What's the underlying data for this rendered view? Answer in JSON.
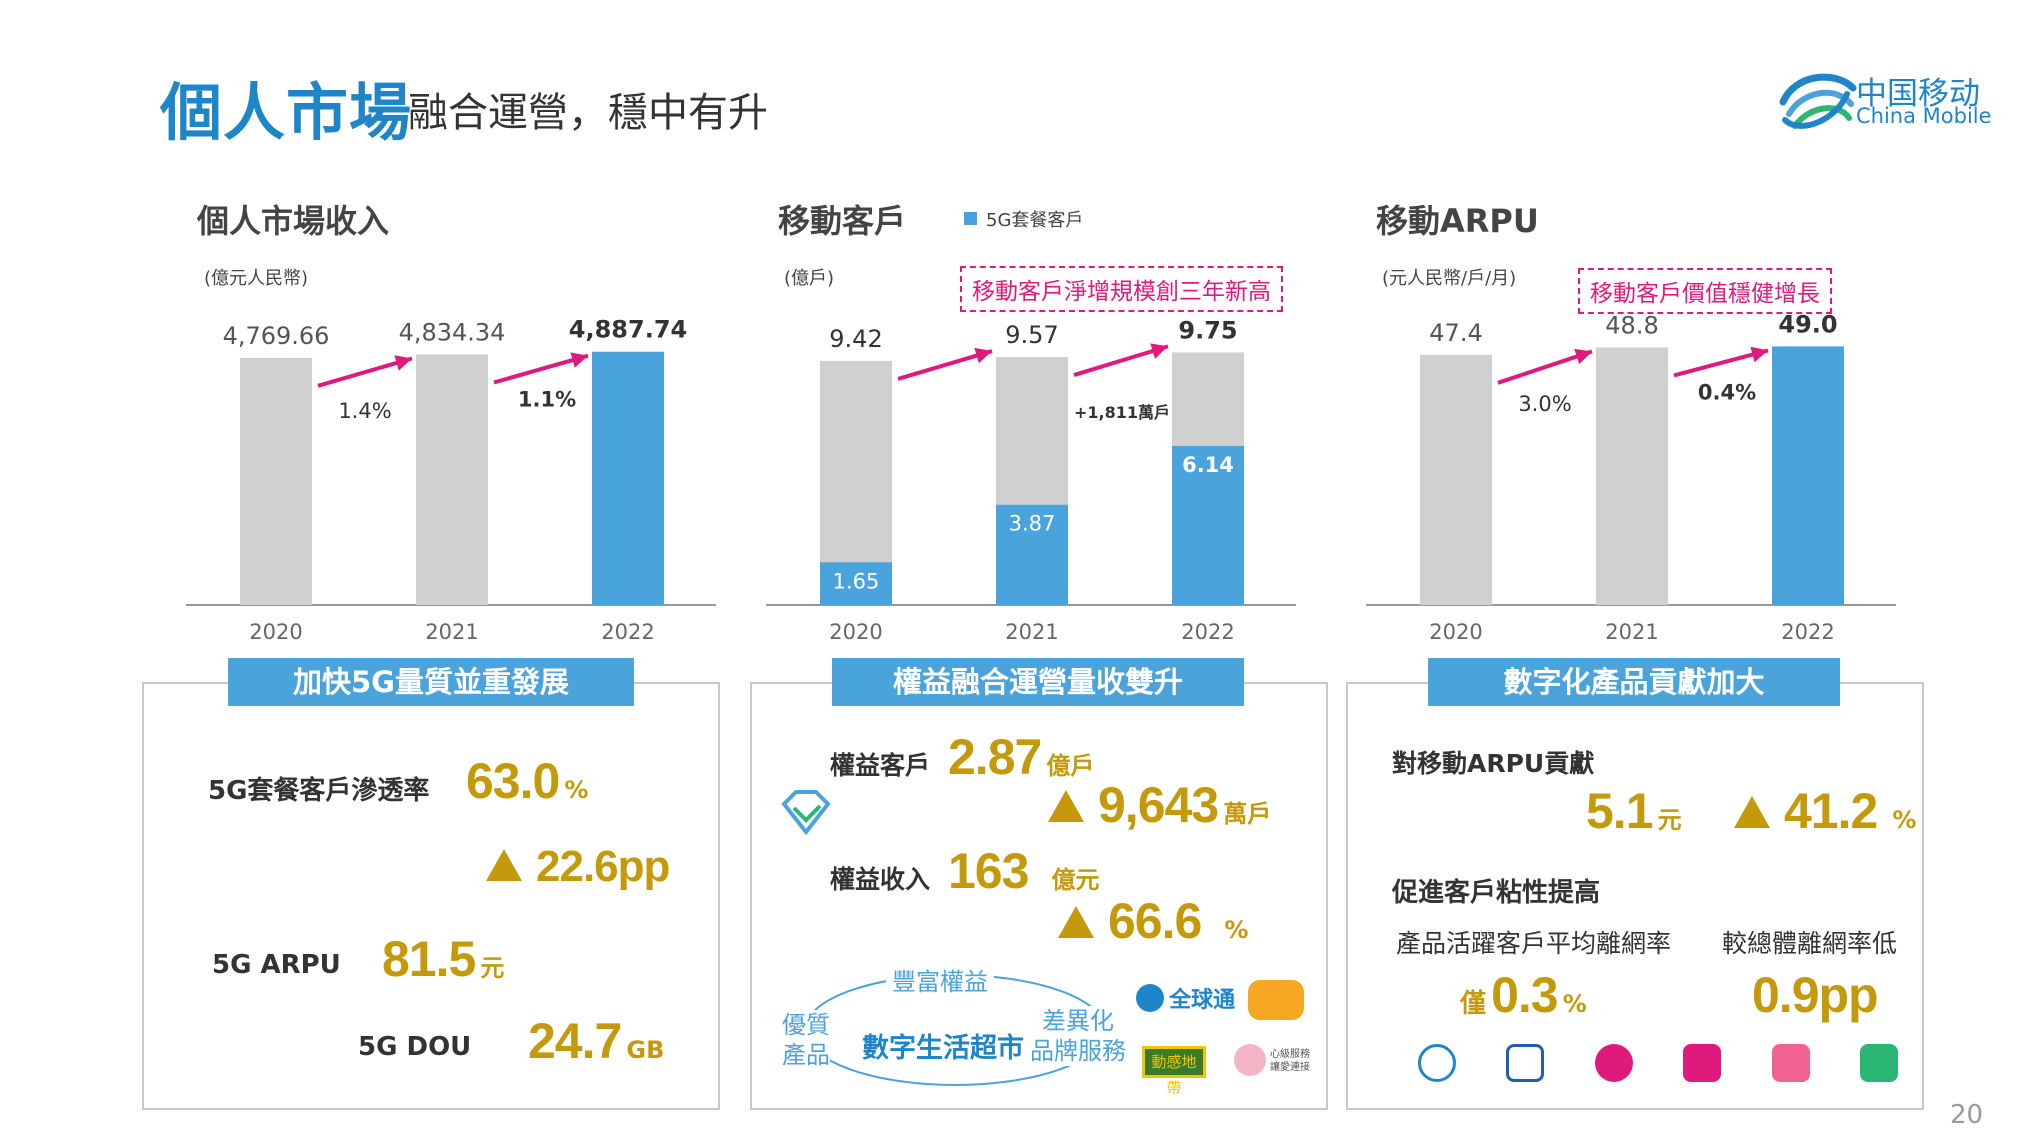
{
  "header": {
    "title": "個人市場",
    "subtitle": "融合運營，穩中有升",
    "logo_cn": "中国移动",
    "logo_en": "China Mobile"
  },
  "colors": {
    "brand_blue": "#1e86c8",
    "bar_blue": "#4ba3dc",
    "bar_gray": "#d0d0d0",
    "accent_magenta": "#e0197d",
    "gold": "#c49a0c"
  },
  "chart_data": [
    {
      "type": "bar",
      "title": "個人市場收入",
      "ylabel": "(億元人民幣)",
      "categories": [
        "2020",
        "2021",
        "2022"
      ],
      "values": [
        4769.66,
        4834.34,
        4887.74
      ],
      "value_labels": [
        "4,769.66",
        "4,834.34",
        "4,887.74"
      ],
      "growth_labels": [
        "1.4%",
        "1.1%"
      ],
      "highlight_index": 2,
      "ylim": [
        0,
        5500
      ]
    },
    {
      "type": "bar",
      "title": "移動客戶",
      "ylabel": "(億戶)",
      "legend": "5G套餐客戶",
      "callout": "移動客戶淨增規模創三年新高",
      "categories": [
        "2020",
        "2021",
        "2022"
      ],
      "totals": [
        9.42,
        9.57,
        9.75
      ],
      "total_labels": [
        "9.42",
        "9.57",
        "9.75"
      ],
      "series_5g": [
        1.65,
        3.87,
        6.14
      ],
      "series_5g_labels": [
        "1.65",
        "3.87",
        "6.14"
      ],
      "net_add_label": "+1,811萬戶",
      "ylim": [
        0,
        11
      ]
    },
    {
      "type": "bar",
      "title": "移動ARPU",
      "ylabel": "(元人民幣/戶/月)",
      "callout": "移動客戶價值穩健增長",
      "categories": [
        "2020",
        "2021",
        "2022"
      ],
      "values": [
        47.4,
        48.8,
        49.0
      ],
      "value_labels": [
        "47.4",
        "48.8",
        "49.0"
      ],
      "growth_labels": [
        "3.0%",
        "0.4%"
      ],
      "highlight_index": 2,
      "ylim": [
        0,
        54
      ]
    }
  ],
  "box1": {
    "header": "加快5G量質並重發展",
    "penetration_label": "5G套餐客戶滲透率",
    "penetration_value": "63.0",
    "penetration_unit": "%",
    "penetration_change": "22.6pp",
    "arpu_label": "5G ARPU",
    "arpu_value": "81.5",
    "arpu_unit": "元",
    "dou_label": "5G DOU",
    "dou_value": "24.7",
    "dou_unit": "GB"
  },
  "box2": {
    "header": "權益融合運營量收雙升",
    "customers_label": "權益客戶",
    "customers_value": "2.87",
    "customers_unit": "億戶",
    "customers_change": "9,643",
    "customers_change_unit": "萬戶",
    "revenue_label": "權益收入",
    "revenue_value": "163",
    "revenue_unit": "億元",
    "revenue_change": "66.6",
    "revenue_change_unit": "%",
    "ring_top": "豐富權益",
    "ring_left": "優質\n產品",
    "ring_center": "數字生活超市",
    "ring_right": "差異化\n品牌服務",
    "brand_1": "全球通",
    "brand_3": "動感地帶",
    "brand_4": "心級服務 讓愛連接"
  },
  "box3": {
    "header": "數字化產品貢獻加大",
    "arpu_contrib_label": "對移動ARPU貢獻",
    "arpu_contrib_value": "5.1",
    "arpu_contrib_unit": "元",
    "arpu_contrib_change": "41.2",
    "arpu_contrib_change_unit": "%",
    "stickiness_label": "促進客戶粘性提高",
    "churn_label": "產品活躍客戶平均離網率",
    "churn_prefix": "僅",
    "churn_value": "0.3",
    "churn_unit": "%",
    "lower_label": "較總體離網率低",
    "lower_value": "0.9pp",
    "app_icons": [
      "tianyi-cloud-icon",
      "migu-video-icon",
      "music-icon",
      "vr-icon",
      "migu-music-icon",
      "kuaiyou-icon"
    ]
  },
  "page_number": "20"
}
